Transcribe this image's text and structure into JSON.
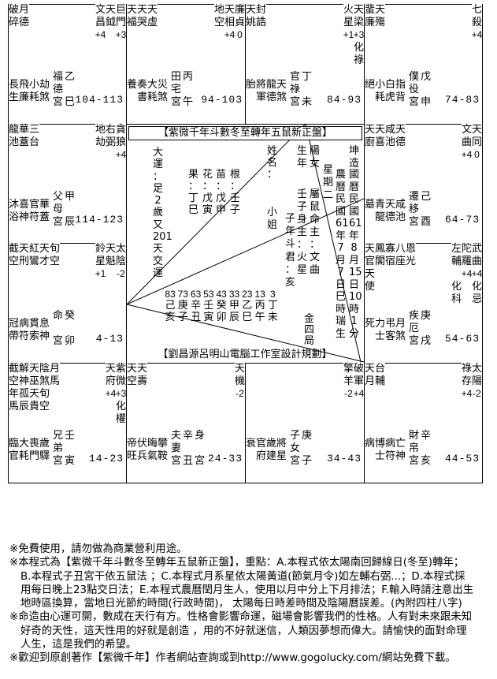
{
  "gong": "宮",
  "cells": [
    {
      "branch": "巳",
      "minor": [
        [
          "破碎",
          "月德"
        ]
      ],
      "main": [
        {
          "n": "文昌",
          "b": "+4",
          "h": ""
        },
        {
          "n": "天鉞",
          "b": "",
          "h": ""
        },
        {
          "n": "巨門",
          "b": "+3",
          "h": ""
        }
      ],
      "gods": [
        "長生",
        "飛廉",
        "小耗",
        "劫煞"
      ],
      "palace": "福德",
      "stem": "乙",
      "body": [],
      "age": "104-113"
    },
    {
      "branch": "午",
      "minor": [
        [
          "天福",
          "天哭",
          "天虛"
        ]
      ],
      "main": [
        {
          "n": "地空",
          "b": "",
          "h": ""
        },
        {
          "n": "天相",
          "b": "+4",
          "h": ""
        },
        {
          "n": "廉貞",
          "b": "0",
          "h": ""
        }
      ],
      "gods": [
        "養",
        "奏書",
        "大耗",
        "災煞"
      ],
      "palace": "田宅",
      "stem": "丙",
      "body": [],
      "age": "94-103"
    },
    {
      "branch": "未",
      "minor": [
        [
          "天姚",
          "封誥"
        ]
      ],
      "main": [
        {
          "n": "火星",
          "b": "+1",
          "h": ""
        },
        {
          "n": "天梁",
          "b": "+3",
          "h": "化祿"
        }
      ],
      "gods": [
        "胎",
        "將軍",
        "龍德",
        "天煞"
      ],
      "palace": "官祿",
      "stem": "丁",
      "body": [],
      "age": "84-93"
    },
    {
      "branch": "申",
      "minor": [
        [
          "蜚廉",
          "天殤"
        ]
      ],
      "main": [
        {
          "n": "七殺",
          "b": "+4",
          "h": ""
        }
      ],
      "gods": [
        "絕",
        "小耗",
        "白虎",
        "指背"
      ],
      "palace": "僕役",
      "stem": "戊",
      "body": [],
      "age": "74-83"
    },
    {
      "branch": "辰",
      "minor": [
        [
          "龍池",
          "華蓋",
          "三台"
        ]
      ],
      "main": [
        {
          "n": "地劫",
          "b": "",
          "h": ""
        },
        {
          "n": "右弼",
          "b": "",
          "h": ""
        },
        {
          "n": "貪狼",
          "b": "+4",
          "h": ""
        }
      ],
      "gods": [
        "沐浴",
        "喜神",
        "官符",
        "華蓋"
      ],
      "palace": "父母",
      "stem": "甲",
      "body": [],
      "age": "114-123"
    },
    {
      "branch": "酉",
      "minor": [
        [
          "天廚",
          "天喜",
          "咸池",
          "天德"
        ]
      ],
      "main": [
        {
          "n": "文曲",
          "b": "+4",
          "h": ""
        },
        {
          "n": "天同",
          "b": "0",
          "h": ""
        }
      ],
      "gods": [
        "墓",
        "青龍",
        "天德",
        "咸池"
      ],
      "palace": "遷移",
      "stem": "己",
      "body": [],
      "age": "64-73"
    },
    {
      "branch": "卯",
      "minor": [
        [
          "截空",
          "天刑",
          "紅鸞",
          "天才",
          "旬空"
        ]
      ],
      "main": [
        {
          "n": "鈴星",
          "b": "+1",
          "h": ""
        },
        {
          "n": "天魁",
          "b": "",
          "h": ""
        },
        {
          "n": "太陰",
          "b": "-2",
          "h": ""
        }
      ],
      "gods": [
        "冠帶",
        "病符",
        "貫索",
        "息神"
      ],
      "palace": "命",
      "stem": "癸",
      "body": [],
      "age": "4-13"
    },
    {
      "branch": "戌",
      "minor": [
        [
          "天官",
          "鳳閣",
          "寡宿",
          "八座",
          "恩光"
        ],
        [
          "天使"
        ]
      ],
      "main": [
        {
          "n": "左輔",
          "b": "",
          "h": "化科"
        },
        {
          "n": "陀羅",
          "b": "+4",
          "h": ""
        },
        {
          "n": "武曲",
          "b": "+4",
          "h": "化忌"
        }
      ],
      "gods": [
        "死",
        "力士",
        "弔客",
        "月煞"
      ],
      "palace": "疾厄",
      "stem": "庚",
      "body": [],
      "age": "54-63"
    },
    {
      "branch": "寅",
      "minor": [
        [
          "截空",
          "解神",
          "天巫",
          "陰煞",
          "月馬"
        ],
        [
          "年馬",
          "孤辰",
          "天貴",
          "旬空"
        ]
      ],
      "main": [
        {
          "n": "天府",
          "b": "+4",
          "h": ""
        },
        {
          "n": "紫微",
          "b": "+3",
          "h": "化權"
        }
      ],
      "gods": [
        "臨官",
        "大耗",
        "喪門",
        "歲驛"
      ],
      "palace": "兄弟",
      "stem": "壬",
      "body": [],
      "age": "14-23"
    },
    {
      "branch": "丑",
      "minor": [
        [
          "天空",
          "天壽"
        ]
      ],
      "main": [
        {
          "n": "天機",
          "b": "-2",
          "h": ""
        }
      ],
      "gods": [
        "帝旺",
        "伏兵",
        "晦氣",
        "攀鞍"
      ],
      "palace": "夫妻",
      "stem": "辛",
      "body": [
        "身",
        "宮"
      ],
      "age": "24-33"
    },
    {
      "branch": "子",
      "minor": [],
      "main": [
        {
          "n": "擎羊",
          "b": "-2",
          "h": ""
        },
        {
          "n": "破軍",
          "b": "+4",
          "h": ""
        }
      ],
      "gods": [
        "衰",
        "官府",
        "歲建",
        "將星"
      ],
      "palace": "子女",
      "stem": "庚",
      "body": [],
      "age": "34-43"
    },
    {
      "branch": "亥",
      "minor": [
        [
          "天月",
          "台輔"
        ]
      ],
      "main": [
        {
          "n": "祿存",
          "b": "+4",
          "h": ""
        },
        {
          "n": "太陽",
          "b": "-2",
          "h": ""
        }
      ],
      "gods": [
        "病",
        "博士",
        "病符",
        "亡神"
      ],
      "palace": "財帛",
      "stem": "辛",
      "body": [],
      "age": "44-53"
    }
  ],
  "center": {
    "title": "【紫微千年斗數冬至轉年五鼠新正盤】",
    "footer": "【劉昌源呂明山電腦工作室設計規劃】",
    "columns": [
      "大運：足2歲又201天交運",
      "果：丁巳",
      "花：戊寅",
      "苗：戊申",
      "根：壬子",
      "姓名：",
      "小姐",
      "子年斗君：亥",
      "生年",
      "壬子",
      "身主：火星",
      "陽女",
      "屬鼠",
      "命主：文曲",
      "星期二",
      "農曆民國61年7月7日巳時瑞生",
      "坤造",
      "國曆民國61年8月15日10時1分",
      "金四局"
    ],
    "decades": {
      "ages": [
        "83",
        "73",
        "63",
        "53",
        "43",
        "33",
        "23",
        "13",
        "3"
      ],
      "stems": [
        "己",
        "庚",
        "辛",
        "壬",
        "癸",
        "甲",
        "乙",
        "丙",
        "丁"
      ],
      "branches": [
        "亥",
        "子",
        "丑",
        "寅",
        "卯",
        "辰",
        "巳",
        "午",
        "未"
      ]
    }
  },
  "notes": [
    "※免費使用，請勿做為商業營利用途。",
    "※本程式為【紫微千年斗數冬至轉年五鼠新正盤】，重點：A.本程式依太陽南回歸線日(冬至)轉年；",
    "B.本程式子丑宮干依五鼠法 ；C.本程式月系星依太陽黃道(節氣月令)如左輔右弼...；D.本程式採",
    "用每日晚上23點交日法；E.本程式農曆閏月生人，使用以月中分上下月排法；F.輸入時請注意出生",
    "地時區換算，當地日光節約時間(行政時間)， 太陽每日時差時間及陰陽曆誤差。(內附四柱八字)",
    "※命造由心運可開，數成在天行有方。性格會影響命運，磁場會影響我們的性格。人有對未來跟未知",
    "好奇的天性，這天性用的好就是創造 ，用的不好就迷信，人類因夢想而偉大。請愉快的面對命理",
    "人生，這是我們的希望。",
    "※歡迎到原創著作【紫微千年】作者網站查詢或到http://www.gogolucky.com/網站免費下載。"
  ]
}
